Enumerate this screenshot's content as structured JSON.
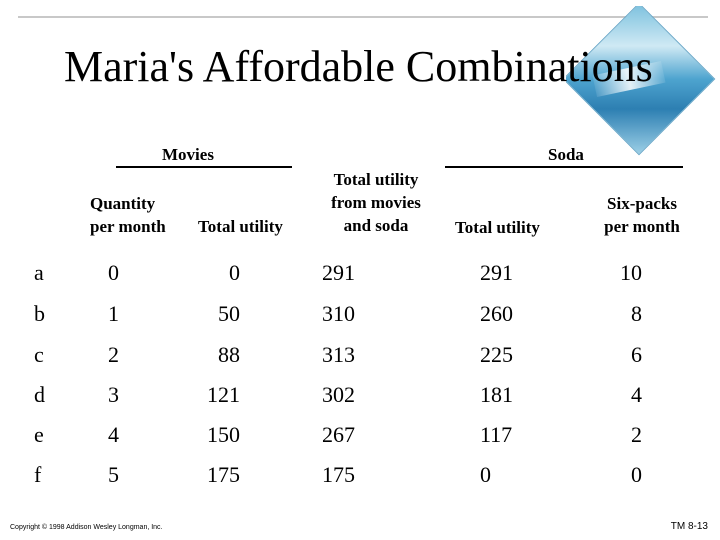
{
  "title": "Maria's Affordable Combinations",
  "groups": {
    "movies": "Movies",
    "soda": "Soda"
  },
  "headers": {
    "quantity": [
      "Quantity",
      "per month"
    ],
    "movies_total_utility": "Total utility",
    "combined": [
      "Total utility",
      "from movies",
      "and soda"
    ],
    "soda_total_utility": "Total utility",
    "sixpacks": [
      "Six-packs",
      "per month"
    ]
  },
  "rows": [
    {
      "label": "a",
      "movies_qty": "0",
      "movies_utility": "0",
      "total_utility": "291",
      "soda_utility": "291",
      "sixpacks": "10"
    },
    {
      "label": "b",
      "movies_qty": "1",
      "movies_utility": "50",
      "total_utility": "310",
      "soda_utility": "260",
      "sixpacks": "8"
    },
    {
      "label": "c",
      "movies_qty": "2",
      "movies_utility": "88",
      "total_utility": "313",
      "soda_utility": "225",
      "sixpacks": "6"
    },
    {
      "label": "d",
      "movies_qty": "3",
      "movies_utility": "121",
      "total_utility": "302",
      "soda_utility": "181",
      "sixpacks": "4"
    },
    {
      "label": "e",
      "movies_qty": "4",
      "movies_utility": "150",
      "total_utility": "267",
      "soda_utility": "117",
      "sixpacks": "2"
    },
    {
      "label": "f",
      "movies_qty": "5",
      "movies_utility": "175",
      "total_utility": "175",
      "soda_utility": "0",
      "sixpacks": "0"
    }
  ],
  "footer": {
    "copyright": "Copyright © 1998 Addison Wesley Longman, Inc.",
    "slide_id": "TM 8-13"
  },
  "decoration": {
    "icon": "diamond-seascape-icon",
    "colors": [
      "#7cc1de",
      "#2d7fb2",
      "#cfe9f4"
    ]
  }
}
